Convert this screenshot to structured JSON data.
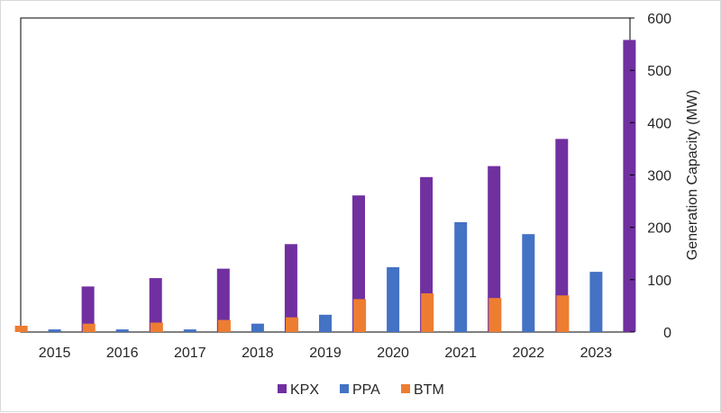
{
  "chart_data": {
    "type": "bar",
    "title": "",
    "xlabel": "",
    "ylabel": "Generation Capacity (MW)",
    "y_axis_side": "right",
    "ylim": [
      0,
      600
    ],
    "yticks": [
      0,
      100,
      200,
      300,
      400,
      500,
      600
    ],
    "grid": false,
    "legend_position": "bottom",
    "categories": [
      "2015",
      "2016",
      "2017",
      "2018",
      "2019",
      "2020",
      "2021",
      "2022",
      "2023"
    ],
    "series": [
      {
        "name": "BTM",
        "color": "#ed7d31",
        "values": [
          12,
          16,
          18,
          23,
          28,
          63,
          74,
          65,
          70
        ]
      },
      {
        "name": "PPA",
        "color": "#4472c4",
        "values": [
          5,
          5,
          5,
          16,
          33,
          124,
          210,
          187,
          115
        ]
      },
      {
        "name": "KPX",
        "color": "#7030a0",
        "values": [
          87,
          103,
          121,
          168,
          261,
          296,
          317,
          369,
          558
        ]
      }
    ],
    "legend_order": [
      "KPX",
      "PPA",
      "BTM"
    ]
  }
}
